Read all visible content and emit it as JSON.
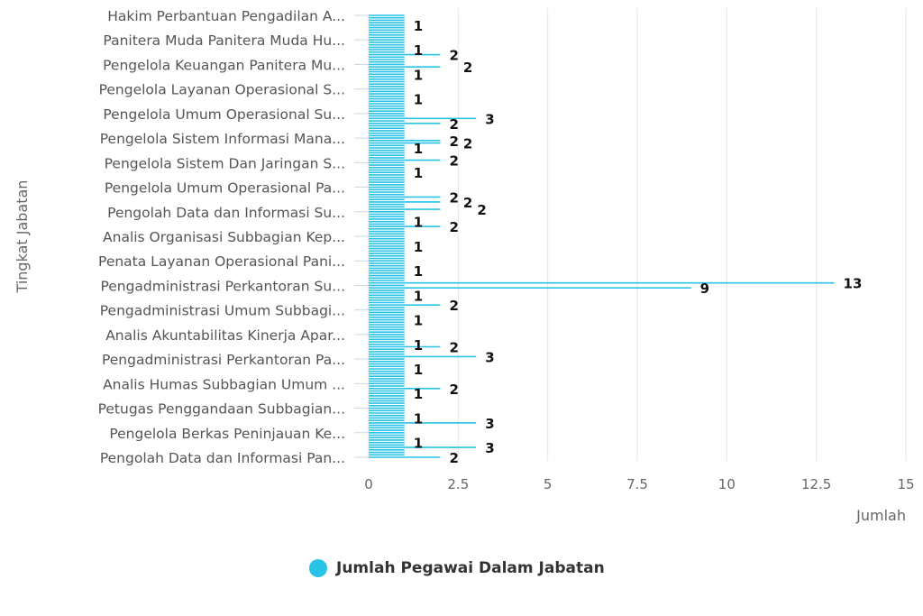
{
  "chart_data": {
    "type": "bar",
    "orientation": "horizontal",
    "xlabel": "Jumlah",
    "ylabel": "Tingkat Jabatan",
    "xlim": [
      0,
      15
    ],
    "xticks": [
      "0",
      "2.5",
      "5",
      "7.5",
      "10",
      "12.5",
      "15"
    ],
    "grid": true,
    "legend_position": "bottom",
    "bar_color": "#29c3e6",
    "visible_category_labels": [
      "Hakim Perbantuan Pengadilan A...",
      "Panitera Muda Panitera Muda Hu...",
      "Pengelola Keuangan Panitera Mu...",
      "Pengelola Layanan Operasional S...",
      "Pengelola Umum Operasional Su...",
      "Pengelola Sistem Informasi Mana...",
      "Pengelola Sistem Dan Jaringan S...",
      "Pengelola Umum Operasional Pa...",
      "Pengolah Data dan Informasi Su...",
      "Analis Organisasi Subbagian Kep...",
      "Penata Layanan Operasional Pani...",
      "Pengadministrasi Perkantoran Su...",
      "Pengadministrasi Umum Subbagi...",
      "Analis Akuntabilitas Kinerja Apar...",
      "Pengadministrasi Perkantoran Pa...",
      "Analis Humas Subbagian Umum ...",
      "Petugas Penggandaan Subbagian...",
      "Pengelola Berkas Peninjauan Ke...",
      "Pengolah Data dan Informasi Pan..."
    ],
    "series": [
      {
        "name": "Jumlah Pegawai Dalam Jabatan",
        "values": [
          1,
          1,
          1,
          1,
          1,
          1,
          1,
          1,
          1,
          1,
          1,
          1,
          1,
          1,
          1,
          1,
          2,
          1,
          1,
          1,
          1,
          2,
          1,
          1,
          1,
          1,
          1,
          1,
          1,
          1,
          1,
          1,
          1,
          1,
          1,
          1,
          1,
          1,
          1,
          1,
          1,
          1,
          3,
          1,
          2,
          1,
          1,
          1,
          1,
          1,
          1,
          2,
          2,
          1,
          1,
          1,
          1,
          1,
          1,
          2,
          1,
          1,
          1,
          1,
          1,
          1,
          1,
          1,
          1,
          1,
          1,
          1,
          1,
          1,
          2,
          1,
          2,
          1,
          1,
          2,
          1,
          1,
          1,
          1,
          1,
          1,
          2,
          1,
          1,
          1,
          1,
          1,
          1,
          1,
          1,
          1,
          1,
          1,
          1,
          1,
          1,
          1,
          1,
          1,
          1,
          1,
          1,
          1,
          1,
          13,
          1,
          9,
          1,
          1,
          1,
          1,
          1,
          1,
          2,
          1,
          1,
          1,
          1,
          1,
          1,
          1,
          1,
          1,
          1,
          1,
          1,
          1,
          1,
          1,
          1,
          2,
          1,
          1,
          1,
          3,
          1,
          1,
          1,
          1,
          1,
          1,
          1,
          1,
          1,
          1,
          1,
          1,
          2,
          1,
          1,
          1,
          1,
          1,
          1,
          1,
          1,
          1,
          1,
          1,
          1,
          1,
          3,
          1,
          1,
          1,
          1,
          1,
          1,
          1,
          1,
          1,
          3,
          1,
          1,
          1,
          2
        ]
      }
    ]
  }
}
